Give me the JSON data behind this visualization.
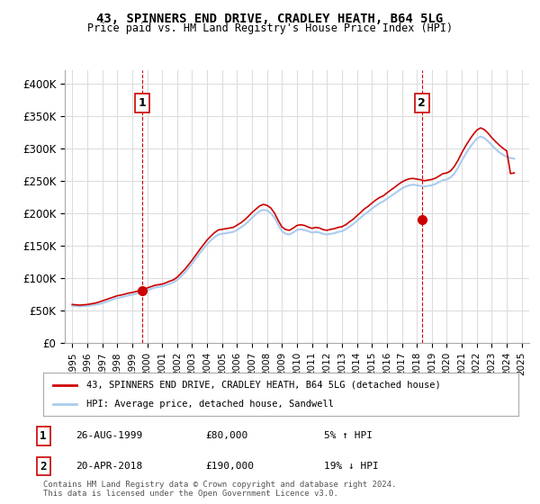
{
  "title": "43, SPINNERS END DRIVE, CRADLEY HEATH, B64 5LG",
  "subtitle": "Price paid vs. HM Land Registry's House Price Index (HPI)",
  "hpi_years": [
    1995.0,
    1995.25,
    1995.5,
    1995.75,
    1996.0,
    1996.25,
    1996.5,
    1996.75,
    1997.0,
    1997.25,
    1997.5,
    1997.75,
    1998.0,
    1998.25,
    1998.5,
    1998.75,
    1999.0,
    1999.25,
    1999.5,
    1999.75,
    2000.0,
    2000.25,
    2000.5,
    2000.75,
    2001.0,
    2001.25,
    2001.5,
    2001.75,
    2002.0,
    2002.25,
    2002.5,
    2002.75,
    2003.0,
    2003.25,
    2003.5,
    2003.75,
    2004.0,
    2004.25,
    2004.5,
    2004.75,
    2005.0,
    2005.25,
    2005.5,
    2005.75,
    2006.0,
    2006.25,
    2006.5,
    2006.75,
    2007.0,
    2007.25,
    2007.5,
    2007.75,
    2008.0,
    2008.25,
    2008.5,
    2008.75,
    2009.0,
    2009.25,
    2009.5,
    2009.75,
    2010.0,
    2010.25,
    2010.5,
    2010.75,
    2011.0,
    2011.25,
    2011.5,
    2011.75,
    2012.0,
    2012.25,
    2012.5,
    2012.75,
    2013.0,
    2013.25,
    2013.5,
    2013.75,
    2014.0,
    2014.25,
    2014.5,
    2014.75,
    2015.0,
    2015.25,
    2015.5,
    2015.75,
    2016.0,
    2016.25,
    2016.5,
    2016.75,
    2017.0,
    2017.25,
    2017.5,
    2017.75,
    2018.0,
    2018.25,
    2018.5,
    2018.75,
    2019.0,
    2019.25,
    2019.5,
    2019.75,
    2020.0,
    2020.25,
    2020.5,
    2020.75,
    2021.0,
    2021.25,
    2021.5,
    2021.75,
    2022.0,
    2022.25,
    2022.5,
    2022.75,
    2023.0,
    2023.25,
    2023.5,
    2023.75,
    2024.0,
    2024.25,
    2024.5
  ],
  "hpi_values": [
    57000,
    56500,
    56000,
    56500,
    57000,
    57500,
    58500,
    59500,
    61000,
    63000,
    65000,
    67000,
    69000,
    70000,
    71500,
    73000,
    74000,
    75500,
    77000,
    79000,
    81000,
    83000,
    85000,
    86000,
    87000,
    89000,
    91000,
    93000,
    97000,
    102000,
    108000,
    115000,
    122000,
    130000,
    138000,
    145000,
    152000,
    158000,
    163000,
    167000,
    168000,
    169000,
    170000,
    171000,
    174000,
    178000,
    182000,
    187000,
    193000,
    198000,
    203000,
    205000,
    204000,
    200000,
    193000,
    182000,
    172000,
    168000,
    167000,
    170000,
    174000,
    175000,
    174000,
    172000,
    170000,
    171000,
    170000,
    168000,
    167000,
    168000,
    169000,
    171000,
    172000,
    175000,
    179000,
    183000,
    188000,
    193000,
    198000,
    202000,
    207000,
    211000,
    215000,
    218000,
    222000,
    226000,
    230000,
    234000,
    238000,
    241000,
    243000,
    244000,
    243000,
    242000,
    241000,
    242000,
    243000,
    245000,
    248000,
    251000,
    252000,
    255000,
    261000,
    270000,
    281000,
    291000,
    300000,
    308000,
    315000,
    318000,
    316000,
    311000,
    305000,
    299000,
    294000,
    290000,
    287000,
    285000,
    284000
  ],
  "price_years": [
    1995.0,
    1995.25,
    1995.5,
    1995.75,
    1996.0,
    1996.25,
    1996.5,
    1996.75,
    1997.0,
    1997.25,
    1997.5,
    1997.75,
    1998.0,
    1998.25,
    1998.5,
    1998.75,
    1999.0,
    1999.25,
    1999.5,
    1999.75,
    2000.0,
    2000.25,
    2000.5,
    2000.75,
    2001.0,
    2001.25,
    2001.5,
    2001.75,
    2002.0,
    2002.25,
    2002.5,
    2002.75,
    2003.0,
    2003.25,
    2003.5,
    2003.75,
    2004.0,
    2004.25,
    2004.5,
    2004.75,
    2005.0,
    2005.25,
    2005.5,
    2005.75,
    2006.0,
    2006.25,
    2006.5,
    2006.75,
    2007.0,
    2007.25,
    2007.5,
    2007.75,
    2008.0,
    2008.25,
    2008.5,
    2008.75,
    2009.0,
    2009.25,
    2009.5,
    2009.75,
    2010.0,
    2010.25,
    2010.5,
    2010.75,
    2011.0,
    2011.25,
    2011.5,
    2011.75,
    2012.0,
    2012.25,
    2012.5,
    2012.75,
    2013.0,
    2013.25,
    2013.5,
    2013.75,
    2014.0,
    2014.25,
    2014.5,
    2014.75,
    2015.0,
    2015.25,
    2015.5,
    2015.75,
    2016.0,
    2016.25,
    2016.5,
    2016.75,
    2017.0,
    2017.25,
    2017.5,
    2017.75,
    2018.0,
    2018.25,
    2018.5,
    2018.75,
    2019.0,
    2019.25,
    2019.5,
    2019.75,
    2020.0,
    2020.25,
    2020.5,
    2020.75,
    2021.0,
    2021.25,
    2021.5,
    2021.75,
    2022.0,
    2022.25,
    2022.5,
    2022.75,
    2023.0,
    2023.25,
    2023.5,
    2023.75,
    2024.0,
    2024.25,
    2024.5
  ],
  "price_values": [
    59000,
    58500,
    58000,
    58500,
    59000,
    60000,
    61000,
    62500,
    64500,
    66500,
    68500,
    70500,
    72500,
    73500,
    75000,
    76500,
    77500,
    79000,
    80500,
    82500,
    84500,
    86500,
    88500,
    89500,
    90500,
    92500,
    95000,
    97000,
    101000,
    107000,
    113000,
    120000,
    127500,
    135500,
    143500,
    151000,
    158500,
    164500,
    170000,
    174000,
    175000,
    176000,
    177000,
    178000,
    181500,
    185000,
    189500,
    195000,
    201000,
    206000,
    211000,
    213500,
    212000,
    208000,
    200000,
    188500,
    178500,
    174500,
    173500,
    177000,
    181000,
    182000,
    181000,
    178500,
    176500,
    178000,
    177000,
    174500,
    173500,
    175000,
    176000,
    178000,
    179000,
    182000,
    186500,
    190500,
    196000,
    201000,
    206500,
    210500,
    215500,
    220000,
    224000,
    226500,
    231000,
    235500,
    239500,
    244000,
    248000,
    251000,
    253000,
    253500,
    252500,
    251500,
    250000,
    251000,
    252000,
    254000,
    257500,
    261000,
    262000,
    265000,
    272000,
    281500,
    293000,
    303500,
    312500,
    321000,
    328000,
    331500,
    329000,
    323500,
    316500,
    310500,
    305000,
    300000,
    296000,
    261000,
    262000
  ],
  "sale1_x": 1999.67,
  "sale1_y": 80000,
  "sale1_label": "1",
  "sale2_x": 2018.33,
  "sale2_y": 190000,
  "sale2_label": "2",
  "red_color": "#cc0000",
  "blue_color": "#aaccee",
  "marker_color": "#cc0000",
  "vline_color": "#cc0000",
  "ylim": [
    0,
    420000
  ],
  "xlim": [
    1994.5,
    2025.5
  ],
  "yticks": [
    0,
    50000,
    100000,
    150000,
    200000,
    250000,
    300000,
    350000,
    400000
  ],
  "xticks": [
    1995,
    1996,
    1997,
    1998,
    1999,
    2000,
    2001,
    2002,
    2003,
    2004,
    2005,
    2006,
    2007,
    2008,
    2009,
    2010,
    2011,
    2012,
    2013,
    2014,
    2015,
    2016,
    2017,
    2018,
    2019,
    2020,
    2021,
    2022,
    2023,
    2024,
    2025
  ],
  "legend_line1": "43, SPINNERS END DRIVE, CRADLEY HEATH, B64 5LG (detached house)",
  "legend_line2": "HPI: Average price, detached house, Sandwell",
  "note1_num": "1",
  "note1_date": "26-AUG-1999",
  "note1_price": "£80,000",
  "note1_hpi": "5% ↑ HPI",
  "note2_num": "2",
  "note2_date": "20-APR-2018",
  "note2_price": "£190,000",
  "note2_hpi": "19% ↓ HPI",
  "footer": "Contains HM Land Registry data © Crown copyright and database right 2024.\nThis data is licensed under the Open Government Licence v3.0.",
  "bg_color": "#ffffff",
  "grid_color": "#dddddd"
}
